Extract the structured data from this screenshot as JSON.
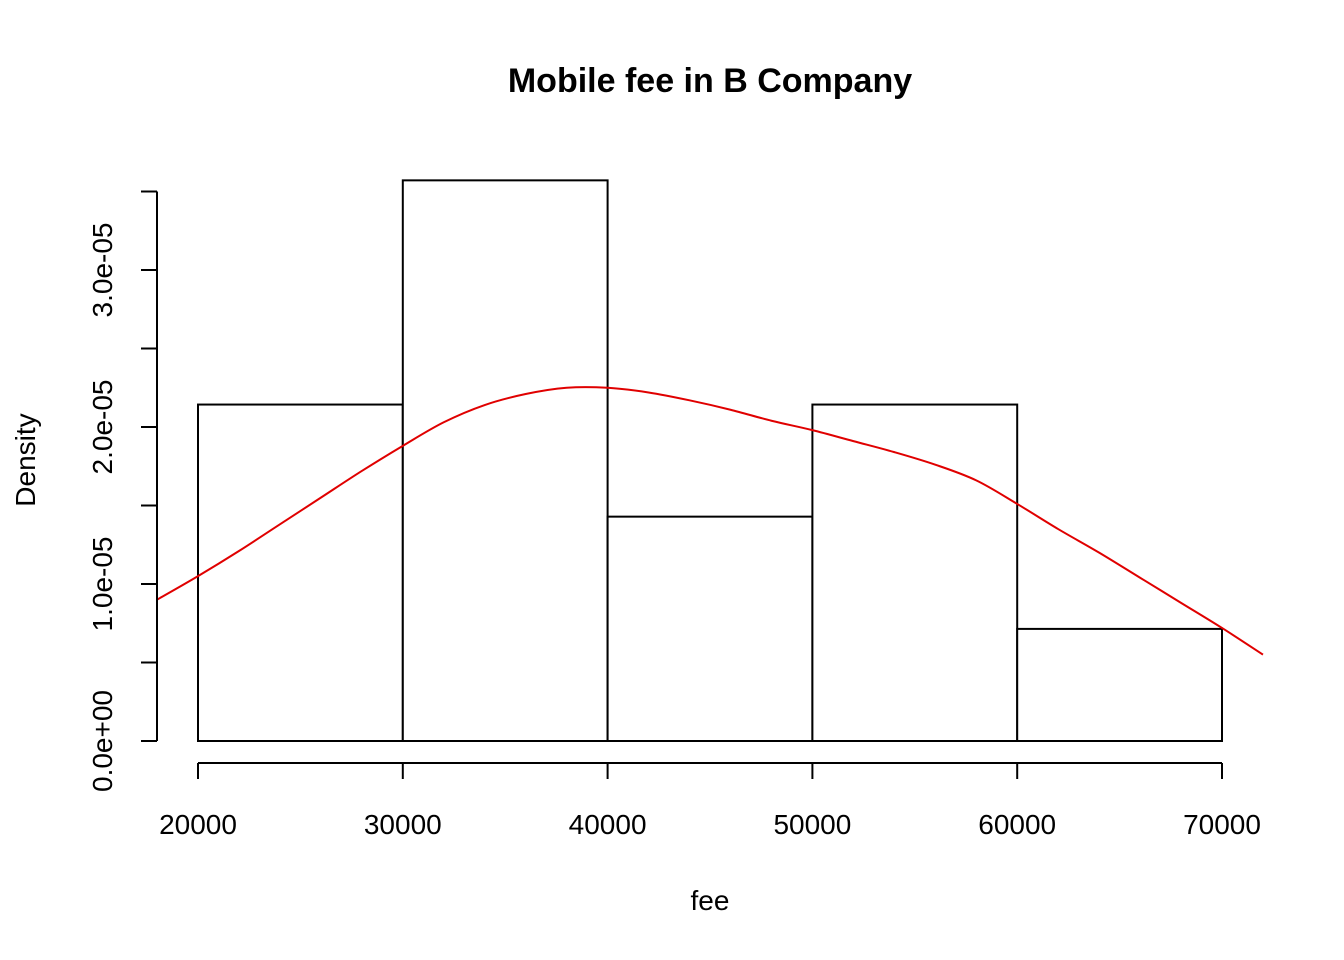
{
  "chart_data": {
    "type": "histogram",
    "title": "Mobile fee in B Company",
    "xlabel": "fee",
    "ylabel": "Density",
    "xlim": [
      18000,
      72000
    ],
    "ylim": [
      0,
      3.6e-05
    ],
    "bins": [
      {
        "start": 20000,
        "end": 30000,
        "density": 2.143e-05
      },
      {
        "start": 30000,
        "end": 40000,
        "density": 3.571e-05
      },
      {
        "start": 40000,
        "end": 50000,
        "density": 1.429e-05
      },
      {
        "start": 50000,
        "end": 60000,
        "density": 2.143e-05
      },
      {
        "start": 60000,
        "end": 70000,
        "density": 7.14e-06
      }
    ],
    "x_ticks": [
      20000,
      30000,
      40000,
      50000,
      60000,
      70000
    ],
    "x_tick_labels": [
      "20000",
      "30000",
      "40000",
      "50000",
      "60000",
      "70000"
    ],
    "y_major_ticks": [
      0,
      1e-05,
      2e-05,
      3e-05
    ],
    "y_minor_ticks": [
      5e-06,
      1.5e-05,
      2.5e-05,
      3.5e-05
    ],
    "y_tick_labels": [
      "0.0e+00",
      "1.0e-05",
      "2.0e-05",
      "3.0e-05"
    ],
    "density_curve": {
      "color": "#e00000",
      "points": [
        [
          18000,
          9e-06
        ],
        [
          20000,
          1.05e-05
        ],
        [
          22000,
          1.21e-05
        ],
        [
          24000,
          1.38e-05
        ],
        [
          26000,
          1.55e-05
        ],
        [
          28000,
          1.72e-05
        ],
        [
          30000,
          1.88e-05
        ],
        [
          32000,
          2.03e-05
        ],
        [
          34000,
          2.14e-05
        ],
        [
          36000,
          2.21e-05
        ],
        [
          38000,
          2.25e-05
        ],
        [
          40000,
          2.25e-05
        ],
        [
          42000,
          2.22e-05
        ],
        [
          44000,
          2.17e-05
        ],
        [
          46000,
          2.11e-05
        ],
        [
          48000,
          2.04e-05
        ],
        [
          50000,
          1.98e-05
        ],
        [
          52000,
          1.91e-05
        ],
        [
          54000,
          1.84e-05
        ],
        [
          56000,
          1.76e-05
        ],
        [
          58000,
          1.66e-05
        ],
        [
          60000,
          1.51e-05
        ],
        [
          62000,
          1.35e-05
        ],
        [
          64000,
          1.2e-05
        ],
        [
          66000,
          1.04e-05
        ],
        [
          68000,
          8.8e-06
        ],
        [
          70000,
          7.2e-06
        ],
        [
          72000,
          5.5e-06
        ]
      ]
    }
  }
}
